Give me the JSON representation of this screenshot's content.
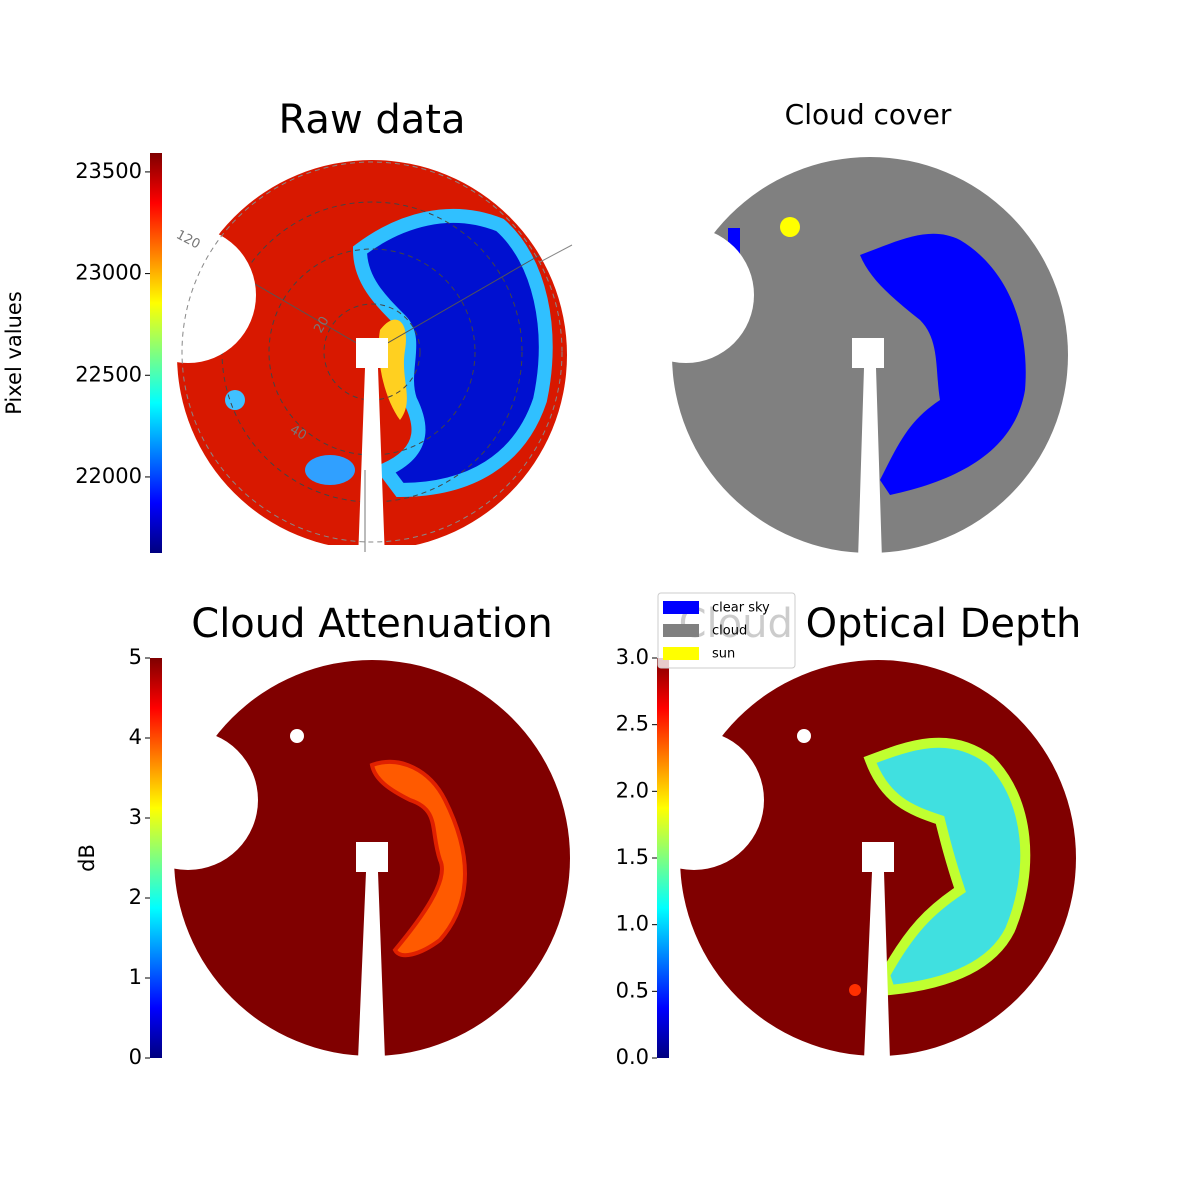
{
  "chart_data": [
    {
      "type": "image",
      "title": "Raw data",
      "annotations": [
        "120",
        "20",
        "40"
      ],
      "colorbar": {
        "label": "Pixel values",
        "lim": [
          21626,
          23593
        ],
        "ticks": [
          22000,
          22500,
          23000,
          23500
        ]
      }
    },
    {
      "type": "image",
      "title": "Cloud cover",
      "legend": [
        {
          "name": "clear sky",
          "color": "#0000ff"
        },
        {
          "name": "cloud",
          "color": "#808080"
        },
        {
          "name": "sun",
          "color": "#ffff00"
        }
      ]
    },
    {
      "type": "image",
      "title": "Cloud Attenuation",
      "colorbar": {
        "label": "dB",
        "lim": [
          0,
          5
        ],
        "ticks": [
          0,
          1,
          2,
          3,
          4,
          5
        ]
      }
    },
    {
      "type": "image",
      "title": "Cloud Optical Depth",
      "colorbar": {
        "lim": [
          0,
          3
        ],
        "ticks": [
          {
            "value": 0,
            "label": "0.0"
          },
          0.5,
          {
            "value": 1,
            "label": "1.0"
          },
          1.5,
          {
            "value": 2,
            "label": "2.0"
          },
          2.5,
          {
            "value": 3,
            "label": "3.0"
          }
        ]
      }
    }
  ]
}
